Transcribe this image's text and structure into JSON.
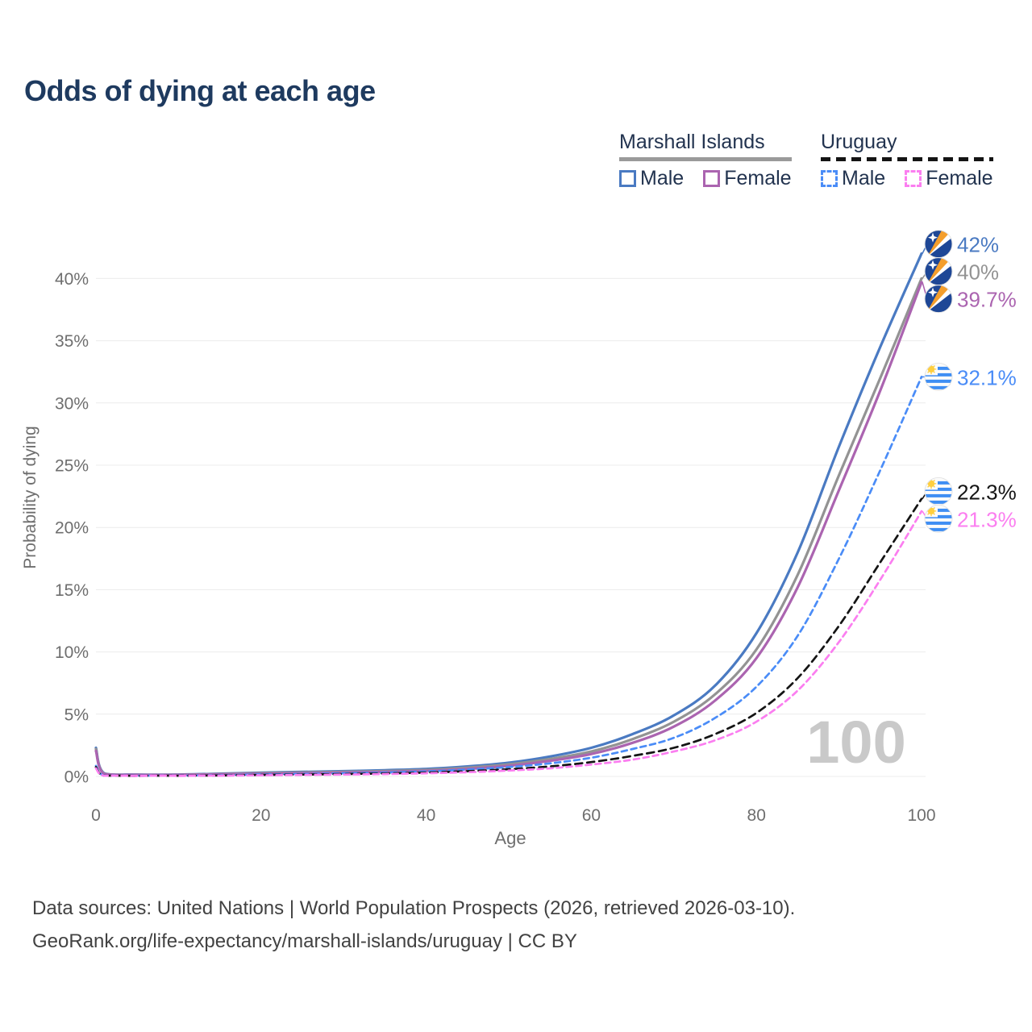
{
  "title": "Odds of dying at each age",
  "legend": {
    "groups": [
      {
        "title": "Marshall Islands",
        "underline_style": "solid",
        "underline_color": "#9a9a9a",
        "items": [
          {
            "label": "Male",
            "color": "#4a7ac2",
            "dashed": false
          },
          {
            "label": "Female",
            "color": "#ab64b0",
            "dashed": false
          }
        ]
      },
      {
        "title": "Uruguay",
        "underline_style": "dashed",
        "underline_color": "#141414",
        "items": [
          {
            "label": "Male",
            "color": "#4a8cf7",
            "dashed": true
          },
          {
            "label": "Female",
            "color": "#fb7ef0",
            "dashed": true
          }
        ]
      }
    ]
  },
  "chart_data": {
    "type": "line",
    "title": "Odds of dying at each age",
    "xlabel": "Age",
    "ylabel": "Probability of dying",
    "x_ticks": [
      0,
      20,
      40,
      60,
      80,
      100
    ],
    "y_ticks": [
      "0%",
      "5%",
      "10%",
      "15%",
      "20%",
      "25%",
      "30%",
      "35%",
      "40%"
    ],
    "xlim": [
      0,
      100
    ],
    "ylim": [
      0,
      43.5
    ],
    "grid": "horizontal",
    "legend_position": "top-right",
    "watermark": "100",
    "ages": [
      0,
      1,
      5,
      10,
      15,
      20,
      25,
      30,
      35,
      40,
      45,
      50,
      55,
      60,
      65,
      70,
      75,
      80,
      85,
      90,
      95,
      100
    ],
    "series": [
      {
        "name": "Marshall Islands Male",
        "country": "Marshall Islands",
        "sex": "Male",
        "style": "solid",
        "color": "#4a7ac2",
        "flag": "marshall-islands",
        "end_label": "42%",
        "values": [
          2.3,
          0.25,
          0.15,
          0.15,
          0.22,
          0.3,
          0.36,
          0.42,
          0.5,
          0.6,
          0.8,
          1.1,
          1.6,
          2.3,
          3.4,
          4.9,
          7.3,
          11.5,
          18.0,
          26.5,
          34.5,
          42.0
        ]
      },
      {
        "name": "Marshall Islands Both sexes",
        "country": "Marshall Islands",
        "sex": "Both",
        "style": "solid",
        "color": "#939393",
        "flag": "marshall-islands",
        "end_label": "40%",
        "values": [
          2.2,
          0.22,
          0.13,
          0.13,
          0.19,
          0.26,
          0.31,
          0.36,
          0.43,
          0.52,
          0.7,
          0.97,
          1.4,
          2.0,
          3.0,
          4.4,
          6.6,
          10.2,
          16.2,
          24.2,
          32.0,
          40.0
        ]
      },
      {
        "name": "Marshall Islands Female",
        "country": "Marshall Islands",
        "sex": "Female",
        "style": "solid",
        "color": "#ab64b0",
        "flag": "marshall-islands",
        "end_label": "39.7%",
        "values": [
          2.05,
          0.2,
          0.12,
          0.12,
          0.16,
          0.21,
          0.26,
          0.31,
          0.37,
          0.45,
          0.6,
          0.85,
          1.25,
          1.8,
          2.7,
          4.0,
          6.1,
          9.5,
          15.2,
          23.0,
          31.0,
          39.7
        ]
      },
      {
        "name": "Uruguay Male",
        "country": "Uruguay",
        "sex": "Male",
        "style": "dashed",
        "color": "#4a8cf7",
        "flag": "uruguay",
        "end_label": "32.1%",
        "values": [
          0.85,
          0.07,
          0.05,
          0.06,
          0.1,
          0.16,
          0.2,
          0.25,
          0.31,
          0.4,
          0.55,
          0.75,
          1.05,
          1.5,
          2.2,
          3.1,
          4.7,
          7.2,
          11.3,
          17.5,
          24.6,
          32.1
        ]
      },
      {
        "name": "Uruguay Both sexes",
        "country": "Uruguay",
        "sex": "Both",
        "style": "dashed",
        "color": "#141414",
        "flag": "uruguay",
        "end_label": "22.3%",
        "values": [
          0.75,
          0.06,
          0.04,
          0.05,
          0.08,
          0.12,
          0.15,
          0.19,
          0.24,
          0.31,
          0.42,
          0.58,
          0.8,
          1.15,
          1.65,
          2.3,
          3.4,
          5.1,
          7.9,
          12.1,
          17.2,
          22.3
        ]
      },
      {
        "name": "Uruguay Female",
        "country": "Uruguay",
        "sex": "Female",
        "style": "dashed",
        "color": "#fb7ef0",
        "flag": "uruguay",
        "end_label": "21.3%",
        "values": [
          0.65,
          0.05,
          0.03,
          0.04,
          0.06,
          0.09,
          0.12,
          0.15,
          0.19,
          0.25,
          0.34,
          0.47,
          0.65,
          0.95,
          1.35,
          2.0,
          2.9,
          4.4,
          6.9,
          10.8,
          15.8,
          21.3
        ]
      }
    ]
  },
  "footer": {
    "line1": "Data sources: United Nations | World Population Prospects (2026, retrieved 2026-03-10).",
    "line2": "GeoRank.org/life-expectancy/marshall-islands/uruguay | CC BY"
  }
}
